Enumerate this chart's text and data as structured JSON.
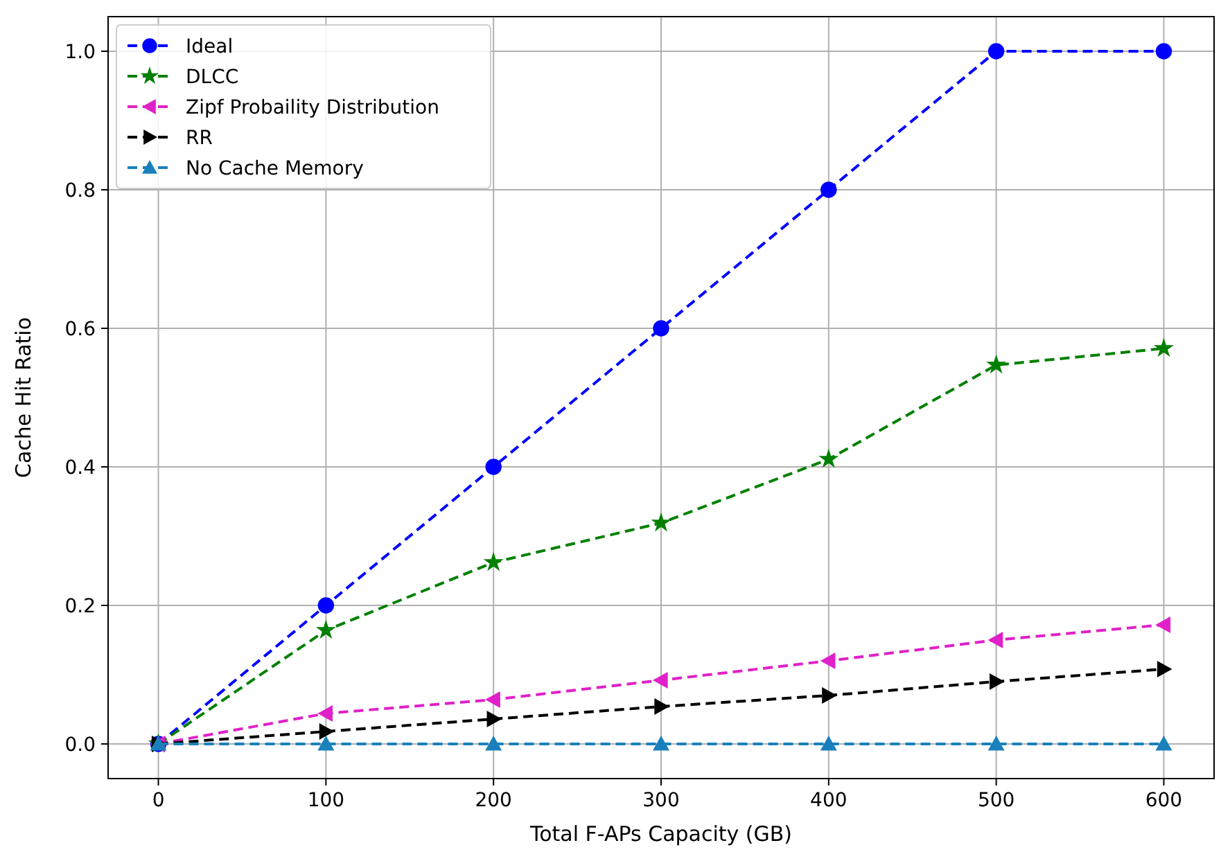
{
  "chart_data": {
    "type": "line",
    "xlabel": "Total F-APs Capacity (GB)",
    "ylabel": "Cache Hit Ratio",
    "x": [
      0,
      100,
      200,
      300,
      400,
      500,
      600
    ],
    "xlim": [
      -30,
      630
    ],
    "xticks": [
      0,
      100,
      200,
      300,
      400,
      500,
      600
    ],
    "ylim": [
      -0.05,
      1.05
    ],
    "yticks": [
      {
        "value": 0,
        "label": "0.0"
      },
      {
        "value": 0.2,
        "label": "0.2"
      },
      {
        "value": 0.4,
        "label": "0.4"
      },
      {
        "value": 0.6,
        "label": "0.6"
      },
      {
        "value": 0.8,
        "label": "0.8"
      },
      {
        "value": 1,
        "label": "1.0"
      }
    ],
    "grid": true,
    "legend": "top left",
    "line_style": "dashed",
    "series": [
      {
        "name": "Ideal",
        "color": "#0000ff",
        "marker": "circle",
        "values": [
          0,
          0.2,
          0.4,
          0.6,
          0.8,
          1,
          1
        ]
      },
      {
        "name": "DLCC",
        "color": "#008000",
        "marker": "star",
        "values": [
          0,
          0.164,
          0.262,
          0.319,
          0.411,
          0.547,
          0.571
        ]
      },
      {
        "name": "Zipf Probaility Distribution",
        "color": "#e020c8",
        "marker": "triangle-left",
        "values": [
          0,
          0.044,
          0.064,
          0.092,
          0.12,
          0.15,
          0.172
        ]
      },
      {
        "name": "RR",
        "color": "#000000",
        "marker": "triangle-right",
        "values": [
          0,
          0.018,
          0.036,
          0.054,
          0.07,
          0.09,
          0.108
        ]
      },
      {
        "name": "No Cache Memory",
        "color": "#1a80bb",
        "marker": "triangle",
        "values": [
          0,
          0,
          0,
          0,
          0,
          0,
          0
        ]
      }
    ]
  }
}
